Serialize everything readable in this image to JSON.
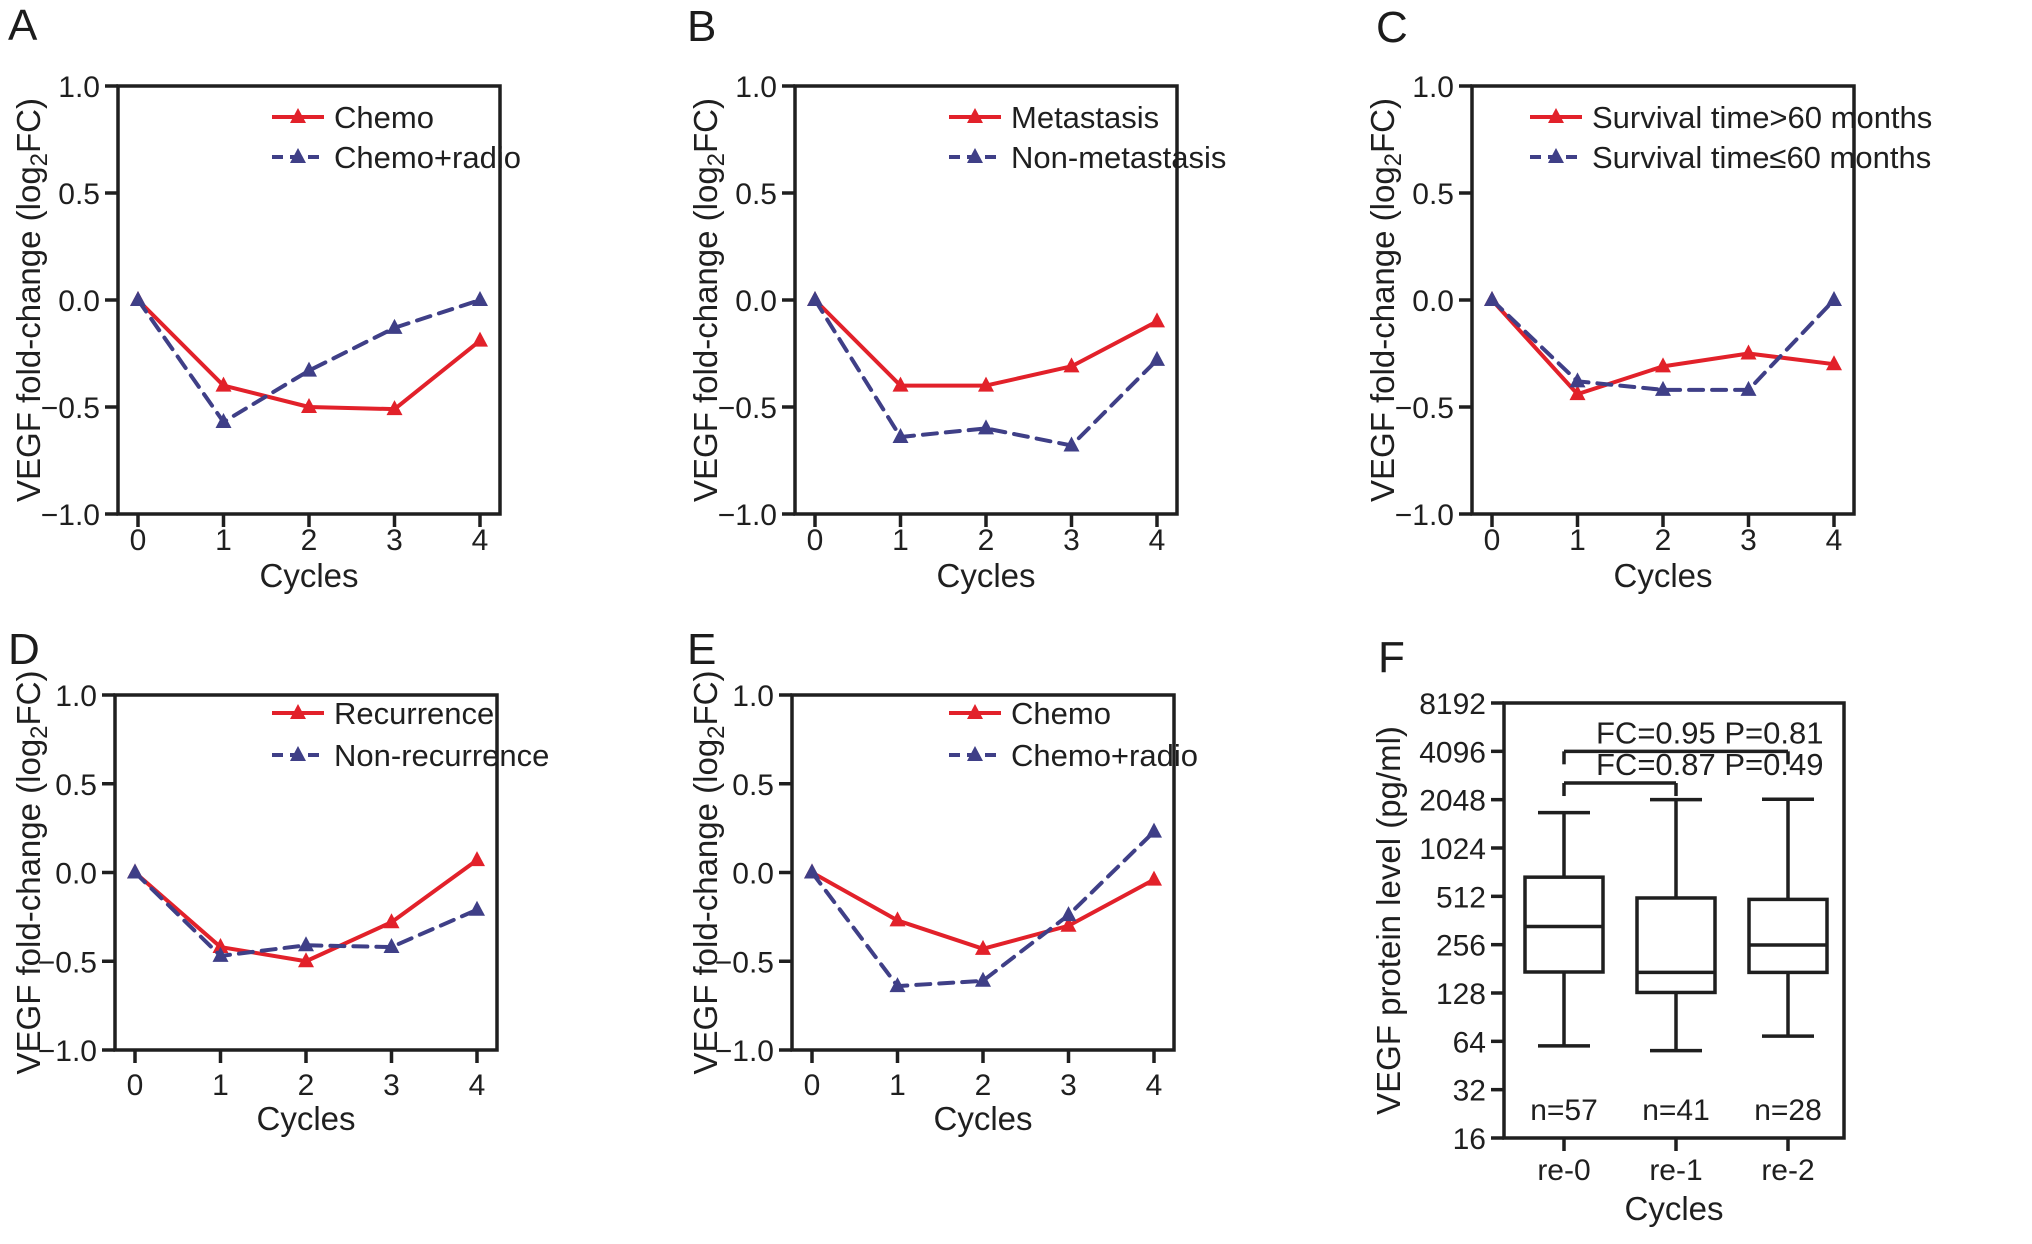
{
  "figure": {
    "background": "#ffffff",
    "colors": {
      "red": "#e2212a",
      "blue": "#3f3f87",
      "ink": "#1f1f1f"
    }
  },
  "chart_data": [
    {
      "id": "A",
      "type": "line",
      "row": 1,
      "col": 1,
      "xlabel": "Cycles",
      "ylabel": "VEGF fold-change (log2FC)",
      "ylabel_rich": [
        {
          "t": "VEGF fold-change (log"
        },
        {
          "t": "2",
          "sub": true
        },
        {
          "t": "FC)"
        }
      ],
      "x": [
        0,
        1,
        2,
        3,
        4
      ],
      "xtick_labels": [
        "0",
        "1",
        "2",
        "3",
        "4"
      ],
      "ylim": [
        -1.0,
        1.0
      ],
      "yticks": [
        {
          "v": 1.0,
          "label": "1.0"
        },
        {
          "v": 0.5,
          "label": "0.5"
        },
        {
          "v": 0.0,
          "label": "0.0"
        },
        {
          "v": -0.5,
          "label": "−0.5"
        },
        {
          "v": -1.0,
          "label": "−1.0"
        }
      ],
      "legend_position": "top-right",
      "series": [
        {
          "name": "Chemo",
          "color_key": "red",
          "line": "solid",
          "marker": "triangle",
          "values": [
            0.0,
            -0.4,
            -0.5,
            -0.51,
            -0.19
          ]
        },
        {
          "name": "Chemo+radio",
          "color_key": "blue",
          "line": "dashed",
          "marker": "triangle",
          "values": [
            0.0,
            -0.57,
            -0.33,
            -0.13,
            0.0
          ]
        }
      ]
    },
    {
      "id": "B",
      "type": "line",
      "row": 1,
      "col": 2,
      "xlabel": "Cycles",
      "ylabel": "VEGF fold-change (log2FC)",
      "ylabel_rich": [
        {
          "t": "VEGF fold-change (log"
        },
        {
          "t": "2",
          "sub": true
        },
        {
          "t": "FC)"
        }
      ],
      "x": [
        0,
        1,
        2,
        3,
        4
      ],
      "xtick_labels": [
        "0",
        "1",
        "2",
        "3",
        "4"
      ],
      "ylim": [
        -1.0,
        1.0
      ],
      "yticks": [
        {
          "v": 1.0,
          "label": "1.0"
        },
        {
          "v": 0.5,
          "label": "0.5"
        },
        {
          "v": 0.0,
          "label": "0.0"
        },
        {
          "v": -0.5,
          "label": "−0.5"
        },
        {
          "v": -1.0,
          "label": "−1.0"
        }
      ],
      "legend_position": "top-right",
      "series": [
        {
          "name": "Metastasis",
          "color_key": "red",
          "line": "solid",
          "marker": "triangle",
          "values": [
            0.0,
            -0.4,
            -0.4,
            -0.31,
            -0.1
          ]
        },
        {
          "name": "Non-metastasis",
          "color_key": "blue",
          "line": "dashed",
          "marker": "triangle",
          "values": [
            0.0,
            -0.64,
            -0.6,
            -0.68,
            -0.28
          ]
        }
      ]
    },
    {
      "id": "C",
      "type": "line",
      "row": 1,
      "col": 3,
      "xlabel": "Cycles",
      "ylabel": "VEGF fold-change (log2FC)",
      "ylabel_rich": [
        {
          "t": "VEGF fold-change (log"
        },
        {
          "t": "2",
          "sub": true
        },
        {
          "t": "FC)"
        }
      ],
      "x": [
        0,
        1,
        2,
        3,
        4
      ],
      "xtick_labels": [
        "0",
        "1",
        "2",
        "3",
        "4"
      ],
      "ylim": [
        -1.0,
        1.0
      ],
      "yticks": [
        {
          "v": 1.0,
          "label": "1.0"
        },
        {
          "v": 0.5,
          "label": "0.5"
        },
        {
          "v": 0.0,
          "label": "0.0"
        },
        {
          "v": -0.5,
          "label": "−0.5"
        },
        {
          "v": -1.0,
          "label": "−1.0"
        }
      ],
      "legend_position": "top-wide",
      "series": [
        {
          "name": "Survival time>60 months",
          "color_key": "red",
          "line": "solid",
          "marker": "triangle",
          "values": [
            0.0,
            -0.44,
            -0.31,
            -0.25,
            -0.3
          ]
        },
        {
          "name": "Survival time≤60 months",
          "color_key": "blue",
          "line": "dashed",
          "marker": "triangle",
          "values": [
            0.0,
            -0.38,
            -0.42,
            -0.42,
            0.0
          ]
        }
      ]
    },
    {
      "id": "D",
      "type": "line",
      "row": 2,
      "col": 1,
      "xlabel": "Cycles",
      "ylabel": "VEGF fold-change (log2FC)",
      "ylabel_rich": [
        {
          "t": "VEGF fold-change (log"
        },
        {
          "t": "2",
          "sub": true
        },
        {
          "t": "FC)"
        }
      ],
      "x": [
        0,
        1,
        2,
        3,
        4
      ],
      "xtick_labels": [
        "0",
        "1",
        "2",
        "3",
        "4"
      ],
      "ylim": [
        -1.0,
        1.0
      ],
      "yticks": [
        {
          "v": 1.0,
          "label": "1.0"
        },
        {
          "v": 0.5,
          "label": "0.5"
        },
        {
          "v": 0.0,
          "label": "0.0"
        },
        {
          "v": -0.5,
          "label": "−0.5"
        },
        {
          "v": -1.0,
          "label": "−1.0"
        }
      ],
      "legend_position": "top-right",
      "series": [
        {
          "name": "Recurrence",
          "color_key": "red",
          "line": "solid",
          "marker": "triangle",
          "values": [
            0.0,
            -0.42,
            -0.5,
            -0.28,
            0.07
          ]
        },
        {
          "name": "Non-recurrence",
          "color_key": "blue",
          "line": "dashed",
          "marker": "triangle",
          "values": [
            0.0,
            -0.47,
            -0.41,
            -0.42,
            -0.21
          ]
        }
      ]
    },
    {
      "id": "E",
      "type": "line",
      "row": 2,
      "col": 2,
      "xlabel": "Cycles",
      "ylabel": "VEGF fold-change (log2FC)",
      "ylabel_rich": [
        {
          "t": "VEGF fold-change (log"
        },
        {
          "t": "2",
          "sub": true
        },
        {
          "t": "FC)"
        }
      ],
      "x": [
        0,
        1,
        2,
        3,
        4
      ],
      "xtick_labels": [
        "0",
        "1",
        "2",
        "3",
        "4"
      ],
      "ylim": [
        -1.0,
        1.0
      ],
      "yticks": [
        {
          "v": 1.0,
          "label": "1.0"
        },
        {
          "v": 0.5,
          "label": "0.5"
        },
        {
          "v": 0.0,
          "label": "0.0"
        },
        {
          "v": -0.5,
          "label": "−0.5"
        },
        {
          "v": -1.0,
          "label": "−1.0"
        }
      ],
      "legend_position": "top-right",
      "series": [
        {
          "name": "Chemo",
          "color_key": "red",
          "line": "solid",
          "marker": "triangle",
          "values": [
            0.0,
            -0.27,
            -0.43,
            -0.3,
            -0.04
          ]
        },
        {
          "name": "Chemo+radio",
          "color_key": "blue",
          "line": "dashed",
          "marker": "triangle",
          "values": [
            0.0,
            -0.64,
            -0.61,
            -0.24,
            0.23
          ]
        }
      ]
    },
    {
      "id": "F",
      "type": "box",
      "row": 2,
      "col": 3,
      "xlabel": "Cycles",
      "ylabel": "VEGF protein level (pg/ml)",
      "yscale": "log2",
      "ylim": [
        16,
        8192
      ],
      "yticks": [
        {
          "v": 8192,
          "label": "8192"
        },
        {
          "v": 4096,
          "label": "4096"
        },
        {
          "v": 2048,
          "label": "2048"
        },
        {
          "v": 1024,
          "label": "1024"
        },
        {
          "v": 512,
          "label": "512"
        },
        {
          "v": 256,
          "label": "256"
        },
        {
          "v": 128,
          "label": "128"
        },
        {
          "v": 64,
          "label": "64"
        },
        {
          "v": 32,
          "label": "32"
        },
        {
          "v": 16,
          "label": "16"
        }
      ],
      "categories": [
        "re-0",
        "re-1",
        "re-2"
      ],
      "boxes": [
        {
          "category": "re-0",
          "min": 60,
          "q1": 173,
          "median": 332,
          "q3": 674,
          "max": 1700,
          "n_label": "n=57"
        },
        {
          "category": "re-1",
          "min": 56,
          "q1": 129,
          "median": 172,
          "q3": 500,
          "max": 2048,
          "n_label": "n=41"
        },
        {
          "category": "re-2",
          "min": 69,
          "q1": 172,
          "median": 255,
          "q3": 490,
          "max": 2060,
          "n_label": "n=28"
        }
      ],
      "annotations": [
        {
          "text": "FC=0.95 P=0.81",
          "from": "re-0",
          "to": "re-2",
          "y": 4096
        },
        {
          "text": "FC=0.87 P=0.49",
          "from": "re-0",
          "to": "re-1",
          "y": 2600
        }
      ]
    }
  ]
}
